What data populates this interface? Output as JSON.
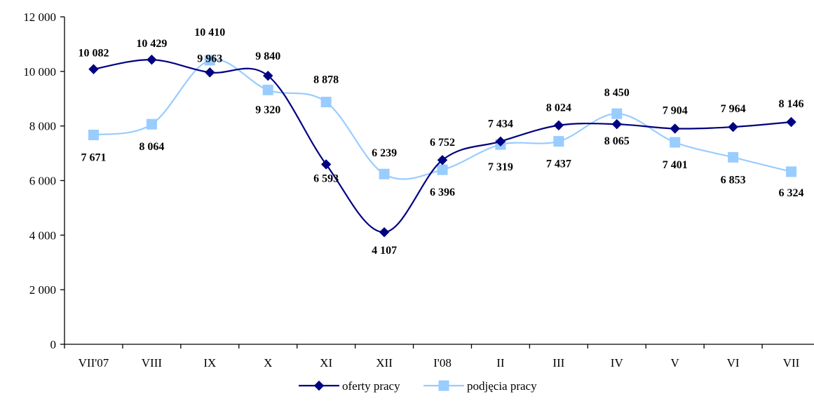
{
  "chart_data": {
    "type": "line",
    "categories": [
      "VII'07",
      "VIII",
      "IX",
      "X",
      "XI",
      "XII",
      "I'08",
      "II",
      "III",
      "IV",
      "V",
      "VI",
      "VII"
    ],
    "ylim": [
      0,
      12000
    ],
    "yticks": [
      0,
      2000,
      4000,
      6000,
      8000,
      10000,
      12000
    ],
    "ytick_labels": [
      "0",
      "2 000",
      "4 000",
      "6 000",
      "8 000",
      "10 000",
      "12 000"
    ],
    "legend_position": "bottom",
    "grid": false,
    "series": [
      {
        "name": "oferty pracy",
        "color": "#000080",
        "marker": "diamond",
        "values": [
          10082,
          10429,
          9963,
          9840,
          6593,
          4107,
          6752,
          7434,
          8024,
          8065,
          7904,
          7964,
          8146
        ],
        "labels": [
          "10 082",
          "10 429",
          "9 963",
          "9 840",
          "6 593",
          "4 107",
          "6 752",
          "7 434",
          "8 024",
          "8 065",
          "7 904",
          "7 964",
          "8 146"
        ]
      },
      {
        "name": "podjęcia pracy",
        "color": "#99CCFF",
        "marker": "square",
        "values": [
          7671,
          8064,
          10410,
          9320,
          8878,
          6239,
          6396,
          7319,
          7437,
          8450,
          7401,
          6853,
          6324
        ],
        "labels": [
          "7 671",
          "8 064",
          "10 410",
          "9 320",
          "8 878",
          "6 239",
          "6 396",
          "7 319",
          "7 437",
          "8 450",
          "7 401",
          "6 853",
          "6 324"
        ]
      }
    ]
  }
}
